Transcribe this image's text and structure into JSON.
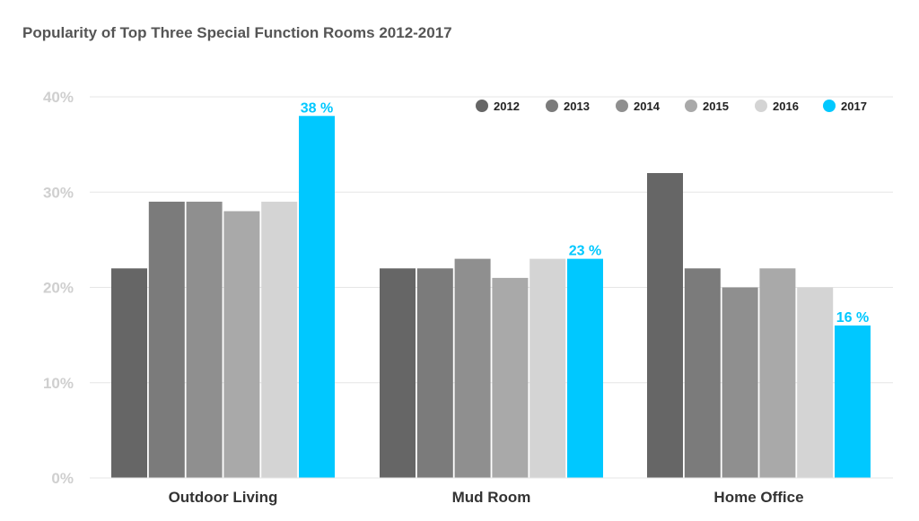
{
  "title": "Popularity of Top Three Special Function Rooms 2012-2017",
  "colors": {
    "2012": "#666666",
    "2013": "#7b7b7b",
    "2014": "#8f8f8f",
    "2015": "#a9a9a9",
    "2016": "#d4d4d4",
    "2017": "#00c8ff",
    "grid": "#e6e6e6",
    "ytick": "#cfcfcf"
  },
  "chart_data": {
    "type": "bar",
    "title": "Popularity of Top Three Special Function Rooms 2012-2017",
    "categories": [
      "Outdoor Living",
      "Mud Room",
      "Home Office"
    ],
    "series": [
      {
        "name": "2012",
        "values": [
          22,
          22,
          32
        ]
      },
      {
        "name": "2013",
        "values": [
          29,
          22,
          22
        ]
      },
      {
        "name": "2014",
        "values": [
          29,
          23,
          20
        ]
      },
      {
        "name": "2015",
        "values": [
          28,
          21,
          22
        ]
      },
      {
        "name": "2016",
        "values": [
          29,
          23,
          20
        ]
      },
      {
        "name": "2017",
        "values": [
          38,
          23,
          16
        ]
      }
    ],
    "data_labels": [
      "38 %",
      "23 %",
      "16 %"
    ],
    "y_ticks": [
      "0%",
      "10%",
      "20%",
      "30%",
      "40%"
    ],
    "ylim": [
      0,
      40
    ],
    "grid": true,
    "legend": "top-right"
  }
}
